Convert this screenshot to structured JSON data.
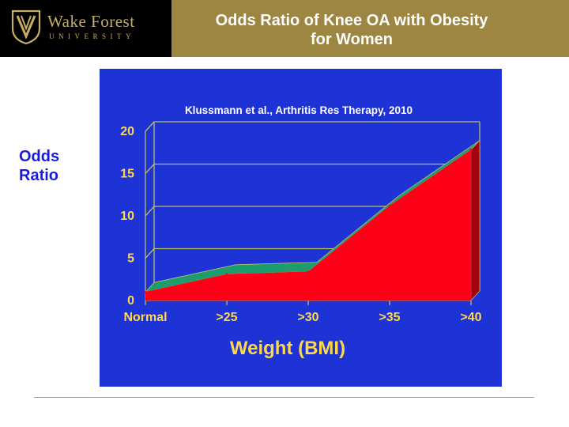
{
  "header": {
    "logo_name": "Wake Forest",
    "logo_sub": "UNIVERSITY",
    "title_line1": "Odds Ratio of Knee OA with Obesity",
    "title_line2": "for Women"
  },
  "colors": {
    "header_gold": "#9d8641",
    "logo_gold": "#c7ad62",
    "plot_bg": "#1e33d6",
    "grid": "#b9bd6a",
    "series_fill": "#ff0018",
    "back_band": "#1d9d6e",
    "axis_text": "#ffd84a",
    "xlabel_text": "#ffd84a",
    "ylabel_text": "#1a1adf"
  },
  "chart_data": {
    "type": "area",
    "subtitle": "Klussmann et al., Arthritis Res Therapy, 2010",
    "xlabel": "Weight (BMI)",
    "ylabel": "Odds Ratio",
    "categories": [
      "Normal",
      ">25",
      ">30",
      ">35",
      ">40"
    ],
    "series": [
      {
        "values": [
          1.0,
          3.1,
          3.4,
          11.2,
          17.8
        ]
      }
    ],
    "yticks": [
      0,
      5,
      10,
      15,
      20
    ],
    "ylim": [
      0,
      20
    ],
    "grid": true,
    "three_d": true
  }
}
